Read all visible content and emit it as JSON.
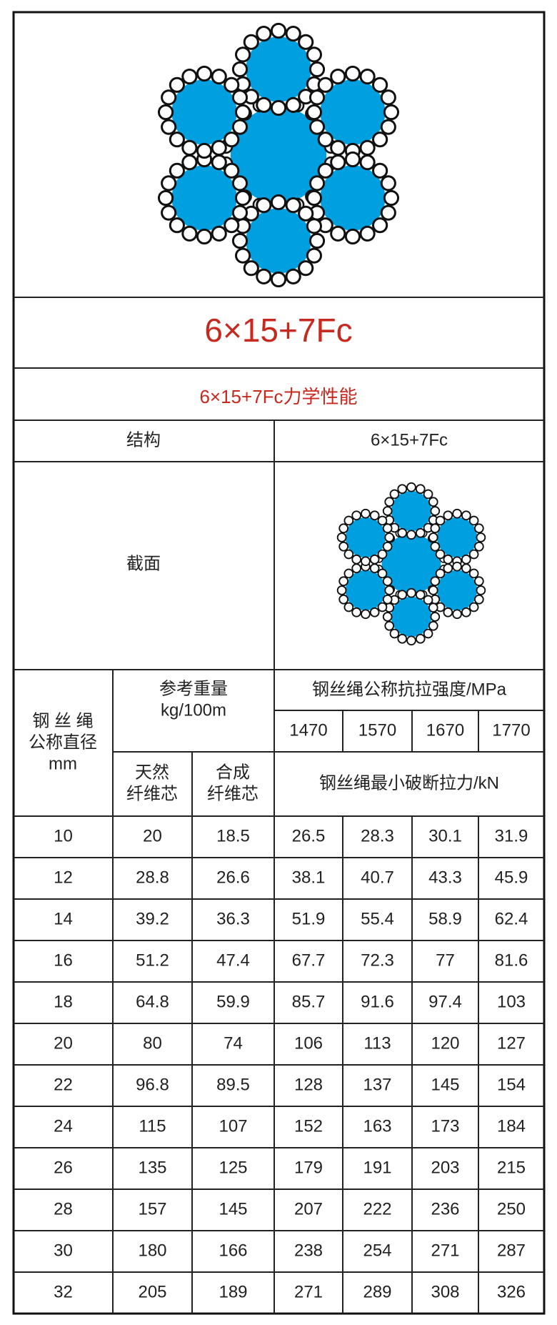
{
  "title": "6×15+7Fc",
  "subtitle": "6×15+7Fc力学性能",
  "structure": {
    "label": "结构",
    "value": "6×15+7Fc"
  },
  "section": {
    "label": "截面"
  },
  "header": {
    "diameter": [
      "钢 丝 绳",
      "公称直径",
      "mm"
    ],
    "weight": [
      "参考重量",
      "kg/100m"
    ],
    "strength": "钢丝绳公称抗拉强度/MPa",
    "strengths": [
      1470,
      1570,
      1670,
      1770
    ],
    "natural": [
      "天然",
      "纤维芯"
    ],
    "synthetic": [
      "合成",
      "纤维芯"
    ],
    "force": "钢丝绳最小破断拉力/kN"
  },
  "rows": [
    [
      10,
      20,
      18.5,
      26.5,
      28.3,
      30.1,
      31.9
    ],
    [
      12,
      28.8,
      26.6,
      38.1,
      40.7,
      43.3,
      45.9
    ],
    [
      14,
      39.2,
      36.3,
      51.9,
      55.4,
      58.9,
      62.4
    ],
    [
      16,
      51.2,
      47.4,
      67.7,
      72.3,
      77,
      81.6
    ],
    [
      18,
      64.8,
      59.9,
      85.7,
      91.6,
      97.4,
      103
    ],
    [
      20,
      80,
      74,
      106,
      113,
      120,
      127
    ],
    [
      22,
      96.8,
      89.5,
      128,
      137,
      145,
      154
    ],
    [
      24,
      115,
      107,
      152,
      163,
      173,
      184
    ],
    [
      26,
      135,
      125,
      179,
      191,
      203,
      215
    ],
    [
      28,
      157,
      145,
      207,
      222,
      236,
      250
    ],
    [
      30,
      180,
      166,
      238,
      254,
      271,
      287
    ],
    [
      32,
      205,
      189,
      271,
      289,
      308,
      326
    ]
  ]
}
